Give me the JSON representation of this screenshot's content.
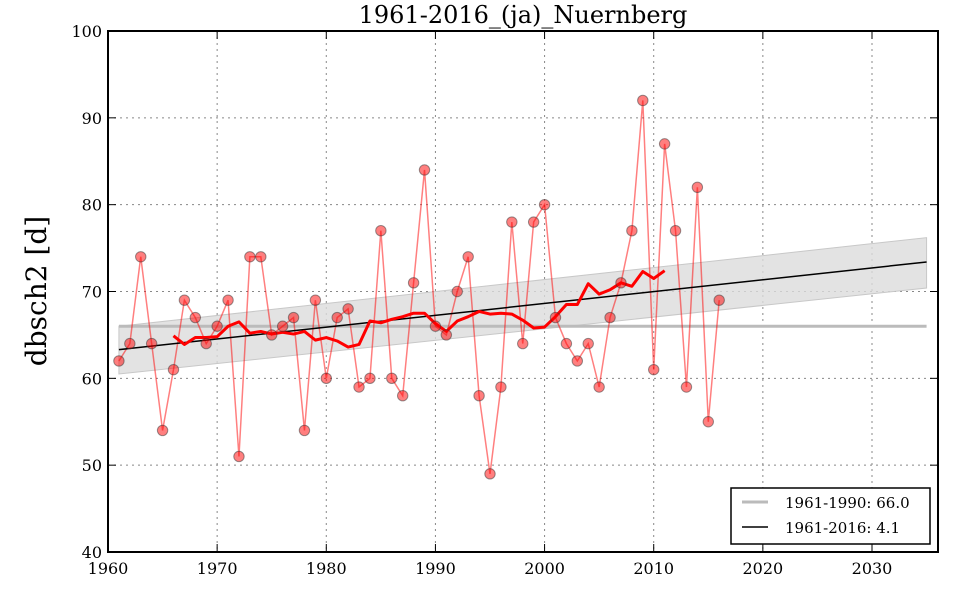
{
  "chart_data": {
    "type": "line",
    "title": "1961-2016_(ja)_Nuernberg",
    "xlabel": "",
    "ylabel": "dbsch2 [d]",
    "xlim": [
      1960,
      2036
    ],
    "ylim": [
      40,
      100
    ],
    "xticks": [
      1960,
      1970,
      1980,
      1990,
      2000,
      2010,
      2020,
      2030
    ],
    "yticks": [
      40,
      50,
      60,
      70,
      80,
      90,
      100
    ],
    "grid": true,
    "legend_position": "bottom-right",
    "colors": {
      "observations": "#ff0000",
      "moving_average": "#ff0000",
      "reference": "#bbbbbb",
      "trend": "#000000",
      "confidence_band": "#e0e0e0"
    },
    "series": [
      {
        "name": "observations",
        "kind": "line-markers",
        "x": [
          1961,
          1962,
          1963,
          1964,
          1965,
          1966,
          1967,
          1968,
          1969,
          1970,
          1971,
          1972,
          1973,
          1974,
          1975,
          1976,
          1977,
          1978,
          1979,
          1980,
          1981,
          1982,
          1983,
          1984,
          1985,
          1986,
          1987,
          1988,
          1989,
          1990,
          1991,
          1992,
          1993,
          1994,
          1995,
          1996,
          1997,
          1998,
          1999,
          2000,
          2001,
          2002,
          2003,
          2004,
          2005,
          2006,
          2007,
          2008,
          2009,
          2010,
          2011,
          2012,
          2013,
          2014,
          2015,
          2016
        ],
        "y": [
          62,
          64,
          74,
          64,
          54,
          61,
          69,
          67,
          64,
          66,
          69,
          51,
          74,
          74,
          65,
          66,
          67,
          54,
          69,
          60,
          67,
          68,
          59,
          60,
          77,
          60,
          58,
          71,
          84,
          66,
          65,
          70,
          74,
          58,
          49,
          59,
          78,
          64,
          78,
          80,
          67,
          64,
          62,
          64,
          59,
          67,
          71,
          77,
          92,
          61,
          87,
          77,
          59,
          82,
          55,
          69
        ]
      },
      {
        "name": "moving_average",
        "kind": "line",
        "x": [
          1966,
          1967,
          1968,
          1969,
          1970,
          1971,
          1972,
          1973,
          1974,
          1975,
          1976,
          1977,
          1978,
          1979,
          1980,
          1981,
          1982,
          1983,
          1984,
          1985,
          1986,
          1987,
          1988,
          1989,
          1990,
          1991,
          1992,
          1993,
          1994,
          1995,
          1996,
          1997,
          1998,
          1999,
          2000,
          2001,
          2002,
          2003,
          2004,
          2005,
          2006,
          2007,
          2008,
          2009,
          2010,
          2011
        ],
        "y": [
          64.9,
          63.9,
          64.7,
          64.7,
          64.8,
          66.0,
          66.5,
          65.2,
          65.4,
          65.1,
          65.3,
          65.1,
          65.4,
          64.4,
          64.7,
          64.3,
          63.6,
          63.9,
          66.6,
          66.4,
          66.8,
          67.1,
          67.5,
          67.5,
          66.3,
          65.4,
          66.6,
          67.1,
          67.7,
          67.4,
          67.5,
          67.4,
          66.7,
          65.8,
          65.9,
          67.1,
          68.5,
          68.5,
          70.9,
          69.7,
          70.2,
          71.0,
          70.6,
          72.3,
          71.5,
          72.4
        ]
      },
      {
        "name": "1961-1990: 66.0",
        "kind": "hline",
        "x": [
          1961,
          2035
        ],
        "y": [
          66.0,
          66.0
        ]
      },
      {
        "name": "1961-2016: 4.1",
        "kind": "trend",
        "x": [
          1961,
          2035
        ],
        "y": [
          63.3,
          73.4
        ],
        "band_lower": [
          60.5,
          70.4
        ],
        "band_upper": [
          66.0,
          76.2
        ]
      }
    ],
    "legend": [
      {
        "label": "1961-1990: 66.0",
        "series": "reference"
      },
      {
        "label": "1961-2016: 4.1",
        "series": "trend"
      }
    ]
  }
}
